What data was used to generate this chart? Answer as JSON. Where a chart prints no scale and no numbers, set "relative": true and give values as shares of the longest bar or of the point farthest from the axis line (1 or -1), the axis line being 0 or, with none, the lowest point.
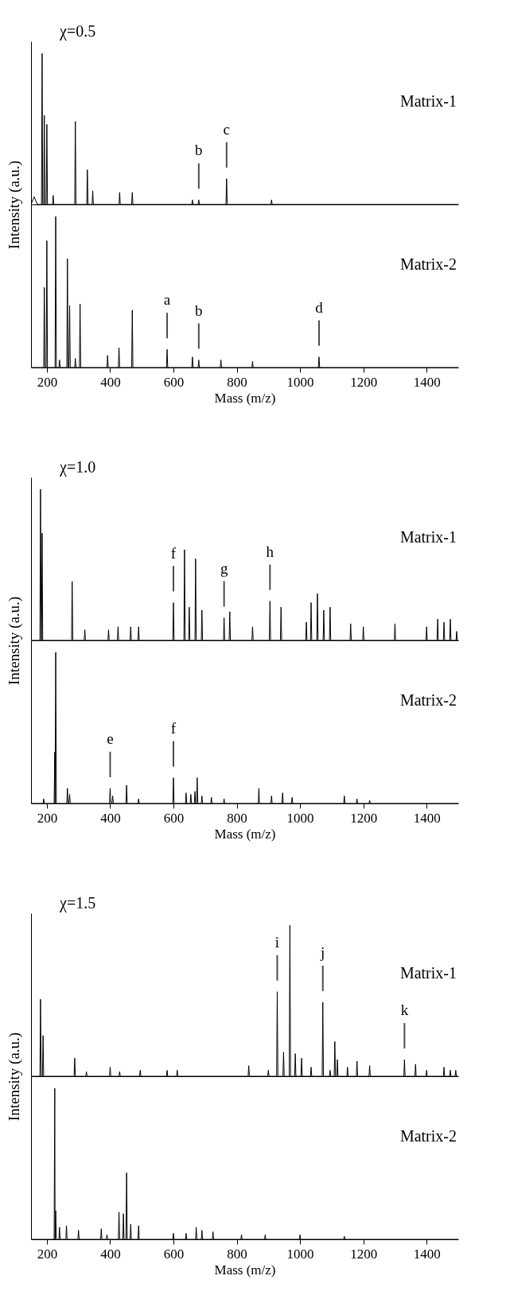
{
  "chart_data": [
    {
      "type": "line",
      "relative": true,
      "title": "χ=0.5",
      "ylabel": "Intensity (a.u.)",
      "xlim": [
        150,
        1500
      ],
      "tick_labels": false,
      "series": [
        {
          "name": "Matrix-1",
          "color": "#000000",
          "x": [
            150,
            160,
            170,
            183,
            185,
            187,
            190,
            192,
            194,
            198,
            200,
            202,
            218,
            220,
            222,
            288,
            290,
            292,
            326,
            328,
            330,
            343,
            345,
            347,
            428,
            430,
            432,
            468,
            470,
            472,
            658,
            660,
            662,
            678,
            680,
            682,
            766,
            768,
            770,
            908,
            910,
            912,
            1500
          ],
          "values": [
            0,
            0.05,
            0,
            0,
            1,
            0,
            0,
            0.59,
            0,
            0,
            0.53,
            0,
            0,
            0.06,
            0,
            0,
            0.55,
            0,
            0,
            0.23,
            0,
            0,
            0.09,
            0,
            0,
            0.08,
            0,
            0,
            0.08,
            0,
            0,
            0.03,
            0,
            0,
            0.03,
            0,
            0,
            0.17,
            0,
            0,
            0.03,
            0,
            0
          ]
        }
      ],
      "annotations": [
        {
          "text": "b",
          "x": 680,
          "y": 0.03
        },
        {
          "text": "c",
          "x": 768,
          "y": 0.17
        }
      ]
    },
    {
      "type": "line",
      "relative": true,
      "xlabel": "Mass (m/z)",
      "xlim": [
        150,
        1500
      ],
      "xticks": [
        200,
        400,
        600,
        800,
        1000,
        1200,
        1400
      ],
      "tick_labels": "x",
      "series": [
        {
          "name": "Matrix-2",
          "color": "#000000",
          "x": [
            150,
            190,
            192,
            194,
            198,
            200,
            202,
            226,
            228,
            230,
            238,
            240,
            242,
            263,
            265,
            267,
            270,
            272,
            274,
            288,
            290,
            292,
            303,
            305,
            307,
            390,
            392,
            394,
            426,
            428,
            430,
            468,
            470,
            472,
            578,
            580,
            582,
            658,
            660,
            662,
            678,
            680,
            682,
            748,
            750,
            752,
            848,
            850,
            852,
            1058,
            1060,
            1062,
            1500
          ],
          "values": [
            0,
            0,
            0.53,
            0,
            0,
            0.84,
            0,
            0,
            1,
            0,
            0,
            0.05,
            0,
            0,
            0.72,
            0,
            0,
            0.41,
            0,
            0,
            0.06,
            0,
            0,
            0.42,
            0,
            0,
            0.08,
            0,
            0,
            0.13,
            0,
            0,
            0.38,
            0,
            0,
            0.12,
            0,
            0,
            0.07,
            0,
            0,
            0.05,
            0,
            0,
            0.05,
            0,
            0,
            0.04,
            0,
            0,
            0.07,
            0,
            0
          ]
        }
      ],
      "annotations": [
        {
          "text": "a",
          "x": 580,
          "y": 0.12
        },
        {
          "text": "b",
          "x": 680,
          "y": 0.05
        },
        {
          "text": "d",
          "x": 1060,
          "y": 0.07
        }
      ]
    },
    {
      "type": "line",
      "relative": true,
      "title": "χ=1.0",
      "ylabel": "Intensity (a.u.)",
      "xlim": [
        150,
        1500
      ],
      "tick_labels": false,
      "series": [
        {
          "name": "Matrix-1",
          "color": "#000000",
          "x": [
            150,
            178,
            180,
            182,
            183,
            185,
            187,
            278,
            280,
            282,
            318,
            320,
            322,
            393,
            395,
            397,
            423,
            425,
            427,
            463,
            465,
            467,
            488,
            490,
            492,
            598,
            600,
            602,
            633,
            635,
            637,
            648,
            650,
            652,
            668,
            670,
            672,
            688,
            690,
            692,
            758,
            760,
            762,
            776,
            778,
            780,
            848,
            850,
            852,
            903,
            905,
            907,
            938,
            940,
            942,
            1018,
            1020,
            1022,
            1033,
            1035,
            1037,
            1053,
            1055,
            1057,
            1073,
            1075,
            1077,
            1093,
            1095,
            1097,
            1158,
            1160,
            1162,
            1198,
            1200,
            1202,
            1298,
            1300,
            1302,
            1398,
            1400,
            1402,
            1433,
            1435,
            1437,
            1453,
            1455,
            1457,
            1473,
            1475,
            1477,
            1493,
            1495,
            1497,
            1500
          ],
          "values": [
            0,
            0,
            1,
            0,
            0,
            0.71,
            0,
            0,
            0.39,
            0,
            0,
            0.07,
            0,
            0,
            0.07,
            0,
            0,
            0.09,
            0,
            0,
            0.09,
            0,
            0,
            0.09,
            0,
            0,
            0.25,
            0,
            0,
            0.6,
            0,
            0,
            0.22,
            0,
            0,
            0.54,
            0,
            0,
            0.2,
            0,
            0,
            0.15,
            0,
            0,
            0.19,
            0,
            0,
            0.09,
            0,
            0,
            0.26,
            0,
            0,
            0.22,
            0,
            0,
            0.12,
            0,
            0,
            0.25,
            0,
            0,
            0.31,
            0,
            0,
            0.2,
            0,
            0,
            0.22,
            0,
            0,
            0.11,
            0,
            0,
            0.09,
            0,
            0,
            0.11,
            0,
            0,
            0.09,
            0,
            0,
            0.14,
            0,
            0,
            0.12,
            0,
            0,
            0.14,
            0,
            0,
            0.06,
            0,
            0
          ]
        }
      ],
      "annotations": [
        {
          "text": "f",
          "x": 600,
          "y": 0.25
        },
        {
          "text": "g",
          "x": 760,
          "y": 0.15
        },
        {
          "text": "h",
          "x": 905,
          "y": 0.26
        }
      ]
    },
    {
      "type": "line",
      "relative": true,
      "xlabel": "Mass (m/z)",
      "xlim": [
        150,
        1500
      ],
      "xticks": [
        200,
        400,
        600,
        800,
        1000,
        1200,
        1400
      ],
      "tick_labels": "x",
      "series": [
        {
          "name": "Matrix-2",
          "color": "#000000",
          "x": [
            150,
            188,
            190,
            192,
            223,
            225,
            226,
            228,
            230,
            263,
            265,
            267,
            270,
            272,
            274,
            398,
            400,
            402,
            406,
            408,
            410,
            450,
            452,
            454,
            488,
            490,
            492,
            598,
            600,
            602,
            638,
            640,
            642,
            653,
            655,
            657,
            666,
            668,
            670,
            673,
            675,
            677,
            688,
            690,
            692,
            718,
            720,
            722,
            758,
            760,
            762,
            868,
            870,
            872,
            908,
            910,
            912,
            943,
            945,
            947,
            973,
            975,
            977,
            1138,
            1140,
            1142,
            1178,
            1180,
            1182,
            1218,
            1220,
            1222,
            1500
          ],
          "values": [
            0,
            0,
            0.03,
            0,
            0,
            0.34,
            0,
            1,
            0,
            0,
            0.1,
            0,
            0,
            0.06,
            0,
            0,
            0.1,
            0,
            0,
            0.05,
            0,
            0,
            0.12,
            0,
            0,
            0.03,
            0,
            0,
            0.17,
            0,
            0,
            0.07,
            0,
            0,
            0.06,
            0,
            0,
            0.08,
            0,
            0,
            0.17,
            0,
            0,
            0.05,
            0,
            0,
            0.04,
            0,
            0,
            0.03,
            0,
            0,
            0.1,
            0,
            0,
            0.05,
            0,
            0,
            0.07,
            0,
            0,
            0.04,
            0,
            0,
            0.05,
            0,
            0,
            0.03,
            0,
            0,
            0.02,
            0,
            0
          ]
        }
      ],
      "annotations": [
        {
          "text": "e",
          "x": 400,
          "y": 0.1
        },
        {
          "text": "f",
          "x": 600,
          "y": 0.17
        }
      ]
    },
    {
      "type": "line",
      "relative": true,
      "title": "χ=1.5",
      "ylabel": "Intensity (a.u.)",
      "xlim": [
        150,
        1500
      ],
      "tick_labels": false,
      "series": [
        {
          "name": "Matrix-1",
          "color": "#000000",
          "x": [
            150,
            178,
            180,
            182,
            186,
            188,
            190,
            286,
            288,
            290,
            323,
            325,
            327,
            398,
            400,
            402,
            428,
            430,
            432,
            493,
            495,
            497,
            578,
            580,
            582,
            610,
            612,
            614,
            836,
            838,
            840,
            898,
            900,
            902,
            926,
            928,
            930,
            946,
            948,
            950,
            966,
            968,
            970,
            983,
            985,
            987,
            1003,
            1005,
            1007,
            1033,
            1035,
            1037,
            1070,
            1072,
            1074,
            1093,
            1095,
            1097,
            1108,
            1110,
            1112,
            1116,
            1118,
            1120,
            1148,
            1150,
            1152,
            1178,
            1180,
            1182,
            1218,
            1220,
            1222,
            1328,
            1330,
            1332,
            1363,
            1365,
            1367,
            1398,
            1400,
            1402,
            1453,
            1455,
            1457,
            1473,
            1475,
            1477,
            1490,
            1492,
            1494,
            1500
          ],
          "values": [
            0,
            0,
            0.51,
            0,
            0,
            0.27,
            0,
            0,
            0.12,
            0,
            0,
            0.03,
            0,
            0,
            0.06,
            0,
            0,
            0.03,
            0,
            0,
            0.04,
            0,
            0,
            0.04,
            0,
            0,
            0.04,
            0,
            0,
            0.07,
            0,
            0,
            0.04,
            0,
            0,
            0.56,
            0,
            0,
            0.16,
            0,
            0,
            1,
            0,
            0,
            0.15,
            0,
            0,
            0.12,
            0,
            0,
            0.06,
            0,
            0,
            0.49,
            0,
            0,
            0.04,
            0,
            0,
            0.23,
            0,
            0,
            0.11,
            0,
            0,
            0.06,
            0,
            0,
            0.1,
            0,
            0,
            0.07,
            0,
            0,
            0.11,
            0,
            0,
            0.08,
            0,
            0,
            0.04,
            0,
            0,
            0.06,
            0,
            0,
            0.04,
            0,
            0,
            0.04,
            0,
            0
          ]
        }
      ],
      "annotations": [
        {
          "text": "i",
          "x": 928,
          "y": 0.56
        },
        {
          "text": "j",
          "x": 1072,
          "y": 0.49
        },
        {
          "text": "k",
          "x": 1330,
          "y": 0.11
        }
      ]
    },
    {
      "type": "line",
      "relative": true,
      "xlabel": "Mass (m/z)",
      "xlim": [
        150,
        1500
      ],
      "xticks": [
        200,
        400,
        600,
        800,
        1000,
        1200,
        1400
      ],
      "tick_labels": "x",
      "series": [
        {
          "name": "Matrix-2",
          "color": "#000000",
          "x": [
            150,
            223,
            225,
            226,
            228,
            230,
            238,
            240,
            242,
            260,
            262,
            264,
            298,
            300,
            302,
            370,
            372,
            374,
            388,
            390,
            392,
            426,
            428,
            430,
            440,
            442,
            444,
            450,
            452,
            454,
            463,
            465,
            467,
            488,
            490,
            492,
            598,
            600,
            602,
            638,
            640,
            642,
            670,
            672,
            674,
            688,
            690,
            692,
            723,
            725,
            727,
            813,
            815,
            817,
            888,
            890,
            892,
            998,
            1000,
            1002,
            1138,
            1140,
            1142,
            1500
          ],
          "values": [
            0,
            0,
            1,
            0,
            0.19,
            0,
            0,
            0.08,
            0,
            0,
            0.09,
            0,
            0,
            0.06,
            0,
            0,
            0.07,
            0,
            0,
            0.03,
            0,
            0,
            0.18,
            0,
            0,
            0.17,
            0,
            0,
            0.44,
            0,
            0,
            0.1,
            0,
            0,
            0.09,
            0,
            0,
            0.04,
            0,
            0,
            0.04,
            0,
            0,
            0.08,
            0,
            0,
            0.06,
            0,
            0,
            0.05,
            0,
            0,
            0.03,
            0,
            0,
            0.03,
            0,
            0,
            0.03,
            0,
            0,
            0.02,
            0,
            0
          ]
        }
      ]
    }
  ]
}
